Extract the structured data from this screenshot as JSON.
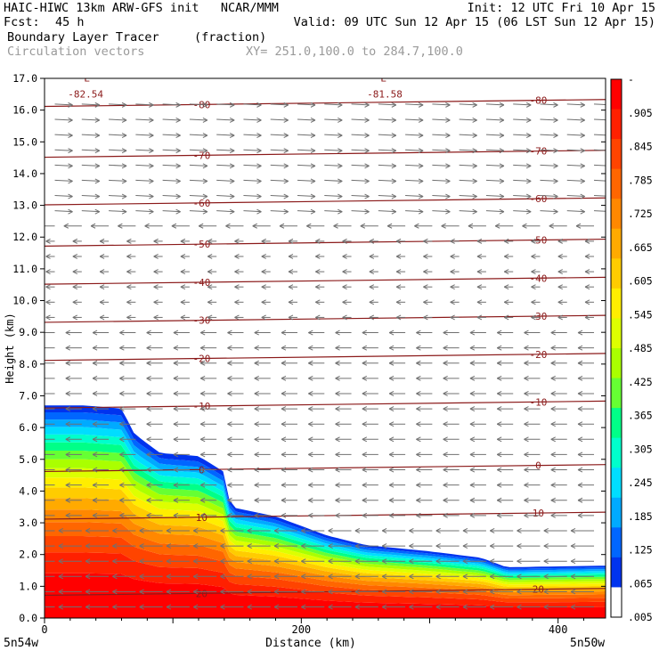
{
  "header": {
    "model_line": "HAIC-HIWC 13km ARW-GFS init   NCAR/MMM",
    "init_line": "Init: 12 UTC Fri 10 Apr 15",
    "fcst_label": "Fcst:",
    "fcst_value": "45 h",
    "valid_line": "Valid: 09 UTC Sun 12 Apr 15 (06 LST Sun 12 Apr 15)",
    "field_name": "Boundary Layer Tracer",
    "field_units": "(fraction)",
    "vector_label": "Circulation vectors",
    "xy_range": "XY= 251.0,100.0 to 284.7,100.0"
  },
  "chart_data": {
    "type": "heatmap",
    "xlabel": "Distance (km)",
    "ylabel": "Height (km)",
    "xlim": [
      0,
      437
    ],
    "ylim": [
      0,
      17
    ],
    "x_ticks": [
      "0",
      "200",
      "400"
    ],
    "x_tick_values": [
      0,
      200,
      400
    ],
    "y_ticks": [
      "0.0",
      "1.0",
      "2.0",
      "3.0",
      "4.0",
      "5.0",
      "6.0",
      "7.0",
      "8.0",
      "9.0",
      "10.0",
      "11.0",
      "12.0",
      "13.0",
      "14.0",
      "15.0",
      "16.0",
      "17.0"
    ],
    "left_endpoint": "5n54w",
    "right_endpoint": "5n50w",
    "colorbar_labels": [
      "-",
      ".905",
      ".845",
      ".785",
      ".725",
      ".665",
      ".605",
      ".545",
      ".485",
      ".425",
      ".365",
      ".305",
      ".245",
      ".185",
      ".125",
      ".065",
      ".005"
    ],
    "colorbar_colors": [
      "#ff0000",
      "#ff2000",
      "#ff4400",
      "#ff6600",
      "#ff8800",
      "#ffaa00",
      "#ffcc00",
      "#ffee00",
      "#ddff00",
      "#aaff00",
      "#66ff33",
      "#00ff88",
      "#00ffcc",
      "#00ddff",
      "#00aaff",
      "#0066ff",
      "#0033ee",
      "#ffffff"
    ],
    "tracer_top_km": [
      {
        "x": 0,
        "top": 6.7
      },
      {
        "x": 30,
        "top": 6.7
      },
      {
        "x": 60,
        "top": 6.6
      },
      {
        "x": 70,
        "top": 5.8
      },
      {
        "x": 90,
        "top": 5.2
      },
      {
        "x": 120,
        "top": 5.1
      },
      {
        "x": 140,
        "top": 4.6
      },
      {
        "x": 145,
        "top": 3.5
      },
      {
        "x": 180,
        "top": 3.2
      },
      {
        "x": 220,
        "top": 2.6
      },
      {
        "x": 250,
        "top": 2.3
      },
      {
        "x": 300,
        "top": 2.1
      },
      {
        "x": 340,
        "top": 1.9
      },
      {
        "x": 360,
        "top": 1.6
      },
      {
        "x": 437,
        "top": 1.65
      }
    ],
    "isotherms": [
      {
        "label": "-80",
        "height_km": 16.2
      },
      {
        "label": "-70",
        "height_km": 14.6
      },
      {
        "label": "-60",
        "height_km": 13.1
      },
      {
        "label": "-50",
        "height_km": 11.8
      },
      {
        "label": "-40",
        "height_km": 10.6
      },
      {
        "label": "-30",
        "height_km": 9.4
      },
      {
        "label": "-20",
        "height_km": 8.2
      },
      {
        "label": "-10",
        "height_km": 6.7
      },
      {
        "label": "0",
        "height_km": 4.7
      },
      {
        "label": "10",
        "height_km": 3.2
      },
      {
        "label": "20",
        "height_km": 0.8
      }
    ],
    "annotations": [
      {
        "text": "L",
        "x_km": 33,
        "height_km": 16.9
      },
      {
        "text": "-82.54",
        "x_km": 32,
        "height_km": 16.4
      },
      {
        "text": "L",
        "x_km": 264,
        "height_km": 16.9
      },
      {
        "text": "-81.58",
        "x_km": 265,
        "height_km": 16.4
      }
    ],
    "grid": false,
    "legend": "right"
  }
}
